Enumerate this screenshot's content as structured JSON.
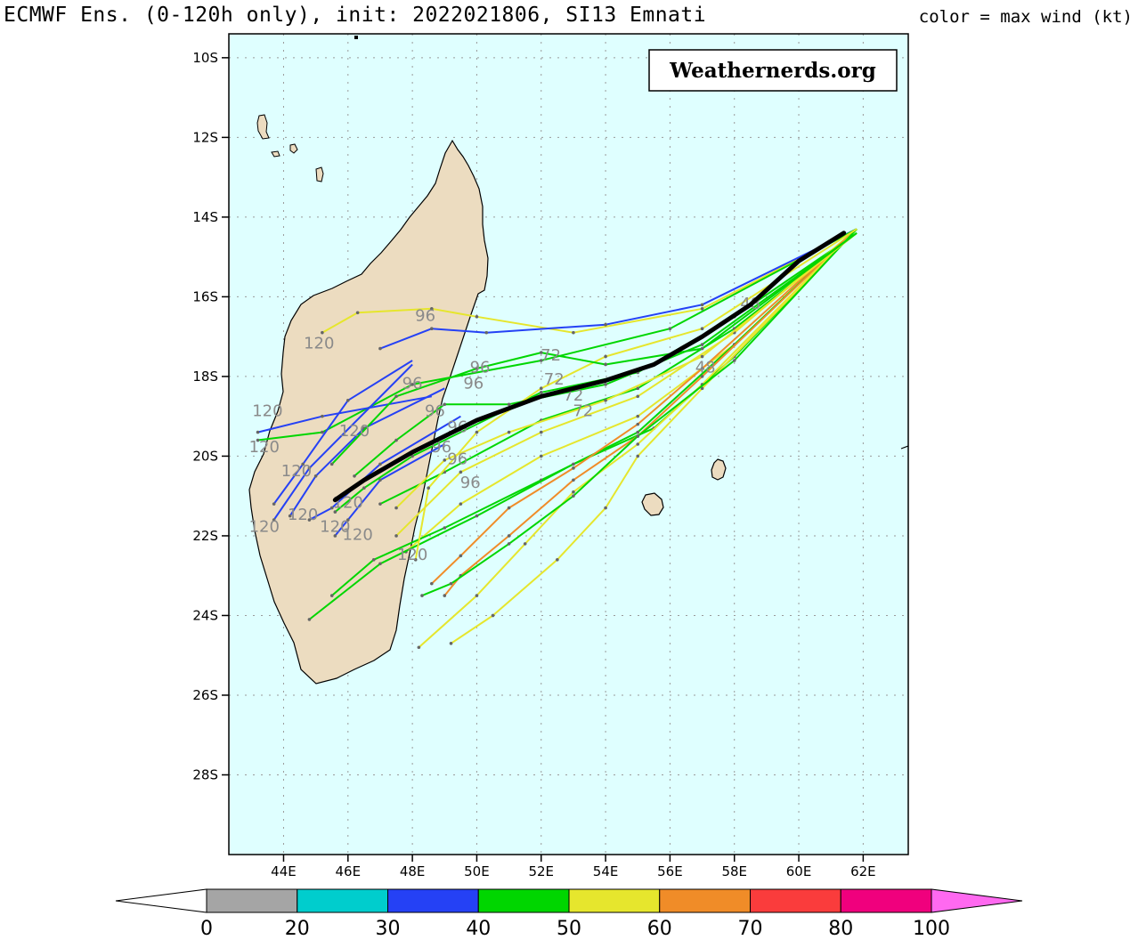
{
  "header": {
    "title": "ECMWF Ens. (0-120h only), init: 2022021806, SI13 Emnati",
    "legend_caption": "color = max wind (kt)"
  },
  "watermark": "Weathernerds.org",
  "map": {
    "extent": {
      "lon_min": 42.3,
      "lon_max": 63.4,
      "lat_min": -30.0,
      "lat_max": -9.4
    },
    "lat_ticks": [
      {
        "lat": -10,
        "label": "10S"
      },
      {
        "lat": -12,
        "label": "12S"
      },
      {
        "lat": -14,
        "label": "14S"
      },
      {
        "lat": -16,
        "label": "16S"
      },
      {
        "lat": -18,
        "label": "18S"
      },
      {
        "lat": -20,
        "label": "20S"
      },
      {
        "lat": -22,
        "label": "22S"
      },
      {
        "lat": -24,
        "label": "24S"
      },
      {
        "lat": -26,
        "label": "26S"
      },
      {
        "lat": -28,
        "label": "28S"
      }
    ],
    "lon_ticks": [
      {
        "lon": 44,
        "label": "44E"
      },
      {
        "lon": 46,
        "label": "46E"
      },
      {
        "lon": 48,
        "label": "48E"
      },
      {
        "lon": 50,
        "label": "50E"
      },
      {
        "lon": 52,
        "label": "52E"
      },
      {
        "lon": 54,
        "label": "54E"
      },
      {
        "lon": 56,
        "label": "56E"
      },
      {
        "lon": 58,
        "label": "58E"
      },
      {
        "lon": 60,
        "label": "60E"
      },
      {
        "lon": 62,
        "label": "62E"
      }
    ],
    "colors": {
      "ocean": "#dfffff",
      "land": "#ecdcc0",
      "mean_track": "#000000"
    },
    "mean_track": [
      [
        61.4,
        -14.4
      ],
      [
        60,
        -15.1
      ],
      [
        58.5,
        -16.2
      ],
      [
        57,
        -17.0
      ],
      [
        55.5,
        -17.7
      ],
      [
        54,
        -18.1
      ],
      [
        52,
        -18.5
      ],
      [
        50,
        -19.1
      ],
      [
        48,
        -19.9
      ],
      [
        46.5,
        -20.6
      ],
      [
        45.6,
        -21.1
      ]
    ],
    "member_tracks": [
      {
        "wind": "yellow",
        "pts": [
          [
            61.8,
            -14.3
          ],
          [
            57,
            -16.3
          ],
          [
            53,
            -16.9
          ],
          [
            50,
            -16.5
          ],
          [
            48.6,
            -16.3
          ],
          [
            46.3,
            -16.4
          ],
          [
            45.2,
            -16.9
          ]
        ]
      },
      {
        "wind": "blue",
        "pts": [
          [
            61.8,
            -14.3
          ],
          [
            57,
            -16.2
          ],
          [
            54,
            -16.7
          ],
          [
            50.3,
            -16.9
          ],
          [
            48.6,
            -16.8
          ],
          [
            47,
            -17.3
          ]
        ]
      },
      {
        "wind": "green",
        "pts": [
          [
            61.8,
            -14.3
          ],
          [
            56,
            -16.8
          ],
          [
            52,
            -17.6
          ],
          [
            48,
            -18.2
          ],
          [
            45.2,
            -19.4
          ],
          [
            43.2,
            -19.6
          ]
        ]
      },
      {
        "wind": "blue",
        "pts": [
          [
            48,
            -17.6
          ],
          [
            46,
            -18.6
          ],
          [
            44.6,
            -20.2
          ],
          [
            43.7,
            -21.2
          ]
        ]
      },
      {
        "wind": "blue",
        "pts": [
          [
            49,
            -18.3
          ],
          [
            46.5,
            -19.3
          ],
          [
            45,
            -20.5
          ],
          [
            44.2,
            -21.5
          ]
        ]
      },
      {
        "wind": "blue",
        "pts": [
          [
            49.5,
            -19
          ],
          [
            47,
            -20.2
          ],
          [
            45.5,
            -21.3
          ],
          [
            44.8,
            -21.6
          ]
        ]
      },
      {
        "wind": "blue",
        "pts": [
          [
            49,
            -19.7
          ],
          [
            47,
            -20.6
          ],
          [
            46,
            -21.6
          ],
          [
            45.6,
            -22
          ]
        ]
      },
      {
        "wind": "blue",
        "pts": [
          [
            48.6,
            -18.5
          ],
          [
            45.2,
            -19
          ],
          [
            43.2,
            -19.4
          ]
        ]
      },
      {
        "wind": "blue",
        "pts": [
          [
            48,
            -17.7
          ],
          [
            44.8,
            -20.3
          ],
          [
            43.7,
            -21.6
          ]
        ]
      },
      {
        "wind": "green",
        "pts": [
          [
            61.8,
            -14.4
          ],
          [
            58,
            -16.5
          ],
          [
            55,
            -17.9
          ],
          [
            52,
            -18.4
          ],
          [
            48,
            -20
          ],
          [
            46.5,
            -20.8
          ],
          [
            45.6,
            -21.4
          ]
        ]
      },
      {
        "wind": "green",
        "pts": [
          [
            61.8,
            -14.4
          ],
          [
            58,
            -16.8
          ],
          [
            55,
            -18.3
          ],
          [
            52,
            -19.1
          ],
          [
            49,
            -20.4
          ],
          [
            47,
            -21.2
          ]
        ]
      },
      {
        "wind": "yellow",
        "pts": [
          [
            61.8,
            -14.3
          ],
          [
            58,
            -16.9
          ],
          [
            55,
            -18.5
          ],
          [
            52,
            -19.4
          ],
          [
            49.5,
            -20.4
          ],
          [
            47.5,
            -22
          ]
        ]
      },
      {
        "wind": "yellow",
        "pts": [
          [
            61.8,
            -14.3
          ],
          [
            58,
            -17.2
          ],
          [
            55,
            -19
          ],
          [
            52,
            -20
          ],
          [
            49.5,
            -21.2
          ],
          [
            47.8,
            -22.4
          ]
        ]
      },
      {
        "wind": "green",
        "pts": [
          [
            61.8,
            -14.3
          ],
          [
            58,
            -17.2
          ],
          [
            55,
            -19.4
          ],
          [
            52,
            -20.6
          ],
          [
            49,
            -21.8
          ],
          [
            46.8,
            -22.6
          ],
          [
            45.5,
            -23.5
          ]
        ]
      },
      {
        "wind": "green",
        "pts": [
          [
            61.8,
            -14.3
          ],
          [
            58,
            -17.5
          ],
          [
            55.5,
            -19.3
          ],
          [
            53,
            -20.2
          ],
          [
            50,
            -21.5
          ],
          [
            47,
            -22.7
          ],
          [
            44.8,
            -24.1
          ]
        ]
      },
      {
        "wind": "orange",
        "pts": [
          [
            61.8,
            -14.3
          ],
          [
            57,
            -17.8
          ],
          [
            55,
            -19.2
          ],
          [
            53,
            -20.3
          ],
          [
            51,
            -21.3
          ],
          [
            49.5,
            -22.5
          ],
          [
            48.6,
            -23.2
          ]
        ]
      },
      {
        "wind": "orange",
        "pts": [
          [
            61.8,
            -14.3
          ],
          [
            57,
            -18
          ],
          [
            55,
            -19.5
          ],
          [
            53,
            -20.6
          ],
          [
            51,
            -22
          ],
          [
            49.5,
            -23
          ],
          [
            49,
            -23.5
          ]
        ]
      },
      {
        "wind": "yellow",
        "pts": [
          [
            61.8,
            -14.3
          ],
          [
            57,
            -18.2
          ],
          [
            55,
            -19.7
          ],
          [
            53,
            -20.9
          ],
          [
            51.5,
            -22.2
          ],
          [
            50,
            -23.5
          ],
          [
            48.2,
            -24.8
          ]
        ]
      },
      {
        "wind": "yellow",
        "pts": [
          [
            61.8,
            -14.3
          ],
          [
            57,
            -18.3
          ],
          [
            55,
            -20
          ],
          [
            54,
            -21.3
          ],
          [
            52.5,
            -22.6
          ],
          [
            50.5,
            -24
          ],
          [
            49.2,
            -24.7
          ]
        ]
      },
      {
        "wind": "green",
        "pts": [
          [
            61.8,
            -14.3
          ],
          [
            58,
            -17.6
          ],
          [
            55,
            -19.5
          ],
          [
            53,
            -21
          ],
          [
            51,
            -22.2
          ],
          [
            49.2,
            -23.2
          ],
          [
            48.3,
            -23.5
          ]
        ]
      },
      {
        "wind": "yellow",
        "pts": [
          [
            61.8,
            -14.3
          ],
          [
            57,
            -16.8
          ],
          [
            54,
            -17.5
          ],
          [
            52,
            -18.3
          ],
          [
            50,
            -19.4
          ],
          [
            48.5,
            -20.8
          ],
          [
            48.1,
            -22.6
          ]
        ]
      },
      {
        "wind": "green",
        "pts": [
          [
            61.8,
            -14.4
          ],
          [
            57,
            -17.2
          ],
          [
            54,
            -18.2
          ],
          [
            51,
            -18.7
          ],
          [
            49,
            -18.7
          ],
          [
            47.5,
            -19.6
          ],
          [
            46.2,
            -20.5
          ]
        ]
      },
      {
        "wind": "yellow",
        "pts": [
          [
            61.8,
            -14.4
          ],
          [
            57,
            -17.5
          ],
          [
            54,
            -18.6
          ],
          [
            51,
            -19.4
          ],
          [
            49,
            -20.1
          ],
          [
            47.5,
            -21.3
          ]
        ]
      },
      {
        "wind": "green",
        "pts": [
          [
            61.8,
            -14.4
          ],
          [
            57,
            -17.3
          ],
          [
            54,
            -17.7
          ],
          [
            52,
            -17.4
          ],
          [
            50,
            -17.8
          ],
          [
            47.5,
            -18.5
          ],
          [
            45.5,
            -20.2
          ]
        ]
      }
    ],
    "hour_labels": [
      {
        "text": "96",
        "lon": 48.4,
        "lat": -16.6
      },
      {
        "text": "120",
        "lon": 45.1,
        "lat": -17.3
      },
      {
        "text": "96",
        "lon": 50.1,
        "lat": -17.9
      },
      {
        "text": "96",
        "lon": 49.9,
        "lat": -18.3
      },
      {
        "text": "96",
        "lon": 48.0,
        "lat": -18.3
      },
      {
        "text": "120",
        "lon": 43.5,
        "lat": -19.0
      },
      {
        "text": "120",
        "lon": 46.2,
        "lat": -19.5
      },
      {
        "text": "96",
        "lon": 48.7,
        "lat": -19.0
      },
      {
        "text": "96",
        "lon": 49.4,
        "lat": -19.4
      },
      {
        "text": "120",
        "lon": 43.4,
        "lat": -19.9
      },
      {
        "text": "96",
        "lon": 48.9,
        "lat": -19.9
      },
      {
        "text": "96",
        "lon": 49.4,
        "lat": -20.2
      },
      {
        "text": "120",
        "lon": 44.4,
        "lat": -20.5
      },
      {
        "text": "96",
        "lon": 49.8,
        "lat": -20.8
      },
      {
        "text": "120",
        "lon": 46.0,
        "lat": -21.3
      },
      {
        "text": "120",
        "lon": 44.6,
        "lat": -21.6
      },
      {
        "text": "120",
        "lon": 45.6,
        "lat": -21.9
      },
      {
        "text": "120",
        "lon": 43.4,
        "lat": -21.9
      },
      {
        "text": "120",
        "lon": 46.3,
        "lat": -22.1
      },
      {
        "text": "120",
        "lon": 48.0,
        "lat": -22.6
      },
      {
        "text": "72",
        "lon": 52.3,
        "lat": -17.6
      },
      {
        "text": "72",
        "lon": 52.4,
        "lat": -18.2
      },
      {
        "text": "72",
        "lon": 53.3,
        "lat": -19.0
      },
      {
        "text": "72",
        "lon": 53.0,
        "lat": -18.6
      },
      {
        "text": "48",
        "lon": 57.1,
        "lat": -17.9
      },
      {
        "text": "48",
        "lon": 58.5,
        "lat": -16.3
      }
    ]
  },
  "colorbar": {
    "segments": [
      {
        "from": "0",
        "to": "20",
        "color": "#a5a5a5"
      },
      {
        "from": "20",
        "to": "30",
        "color": "#00cdcd"
      },
      {
        "from": "30",
        "to": "40",
        "color": "#2541f5"
      },
      {
        "from": "40",
        "to": "50",
        "color": "#00d600"
      },
      {
        "from": "50",
        "to": "60",
        "color": "#e6e62d"
      },
      {
        "from": "60",
        "to": "70",
        "color": "#f08c28"
      },
      {
        "from": "70",
        "to": "80",
        "color": "#fa3c3c"
      },
      {
        "from": "80",
        "to": "100",
        "color": "#f0007d"
      }
    ],
    "labels": [
      "0",
      "20",
      "30",
      "40",
      "50",
      "60",
      "70",
      "80",
      "100"
    ],
    "under_color": "#ffffff",
    "over_color": "#ff69f0"
  }
}
